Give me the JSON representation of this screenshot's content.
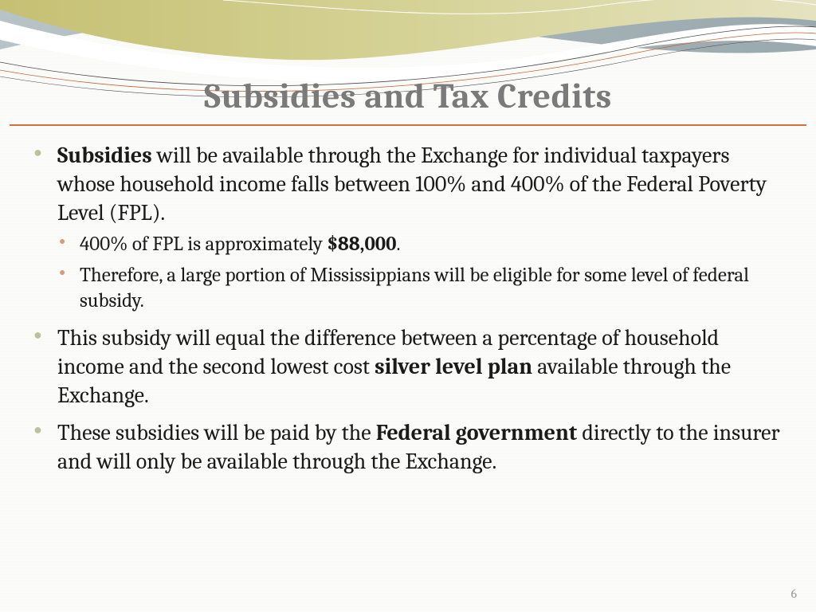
{
  "colors": {
    "title_text": "#7a7a7a",
    "title_rule": "#d86f3c",
    "body_text": "#1a1a1a",
    "outer_bullet": "#b9c29a",
    "inner_bullet": "#d99b77",
    "pagenum": "#9a9a9a",
    "banner_olive": "#c5c072",
    "banner_bluegrey": "#a9b7bb",
    "banner_white": "#ffffff",
    "banner_line_dark": "#4a4a4a",
    "banner_line_orange": "#c4633a"
  },
  "typography": {
    "title_fontsize": 44,
    "outer_fontsize": 28,
    "inner_fontsize": 25,
    "pagenum_fontsize": 16,
    "font_family": "Cambria / Georgia / serif"
  },
  "title": "Subsidies and Tax Credits",
  "bullets": [
    {
      "html": "<span class=\"b\">Subsidies</span> will be available through the Exchange for individual taxpayers whose household income falls between 100% and 400% of the Federal Poverty Level (FPL).",
      "sub": [
        {
          "html": "400% of FPL is approximately <span class=\"b\">$88,000</span>."
        },
        {
          "html": "Therefore, a large portion of Mississippians will be eligible for some level of  federal subsidy."
        }
      ]
    },
    {
      "html": "This subsidy will equal the difference between a percentage of household income and the second lowest cost <span class=\"b\">silver level plan</span> available through the Exchange."
    },
    {
      "html": "These subsidies will be paid by the <span class=\"b\">Federal government</span> directly to the insurer and will only be available through the Exchange."
    }
  ],
  "page_number": "6"
}
